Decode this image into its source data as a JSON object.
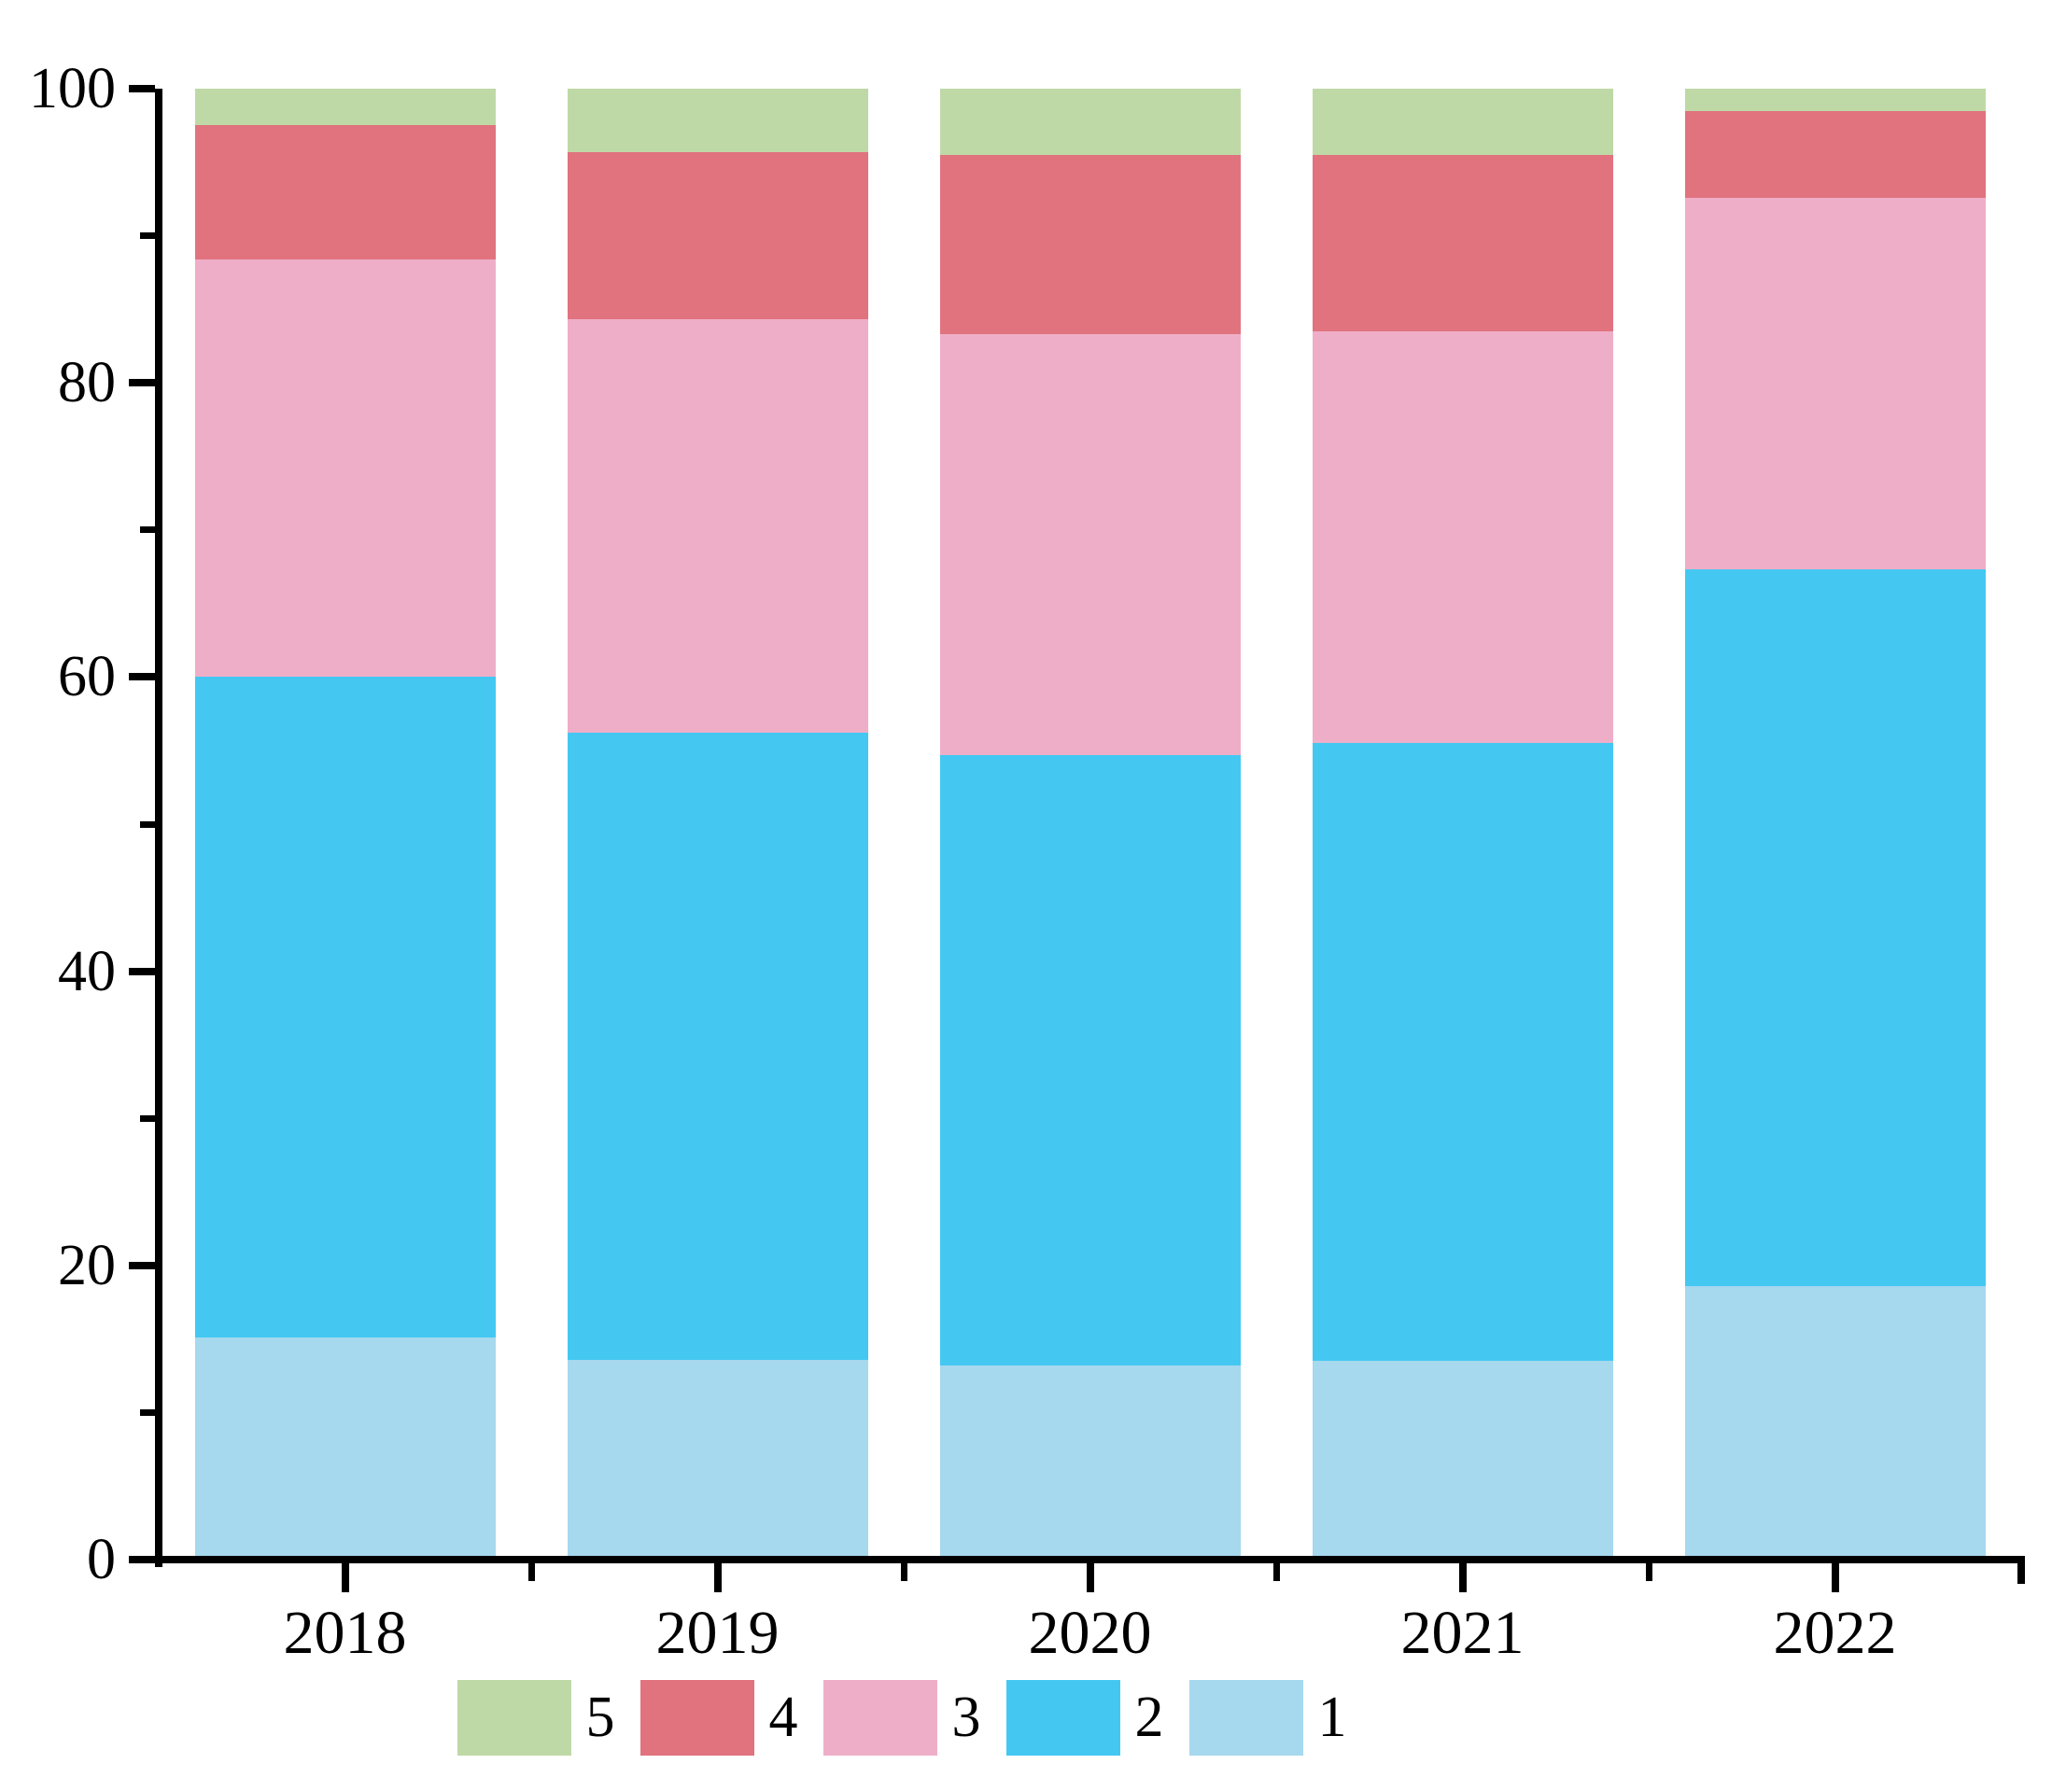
{
  "figure": {
    "background": "#ffffff",
    "axis_color": "#000000",
    "text_color": "#000000"
  },
  "chart_data": {
    "type": "bar",
    "stacked": true,
    "title": "",
    "xlabel": "",
    "ylabel": "",
    "categories": [
      "2018",
      "2019",
      "2020",
      "2021",
      "2022"
    ],
    "series": [
      {
        "name": "1",
        "color": "#a6d8ee",
        "values": [
          15.1,
          13.6,
          13.2,
          13.5,
          18.6
        ]
      },
      {
        "name": "2",
        "color": "#44c8f2",
        "values": [
          44.9,
          42.6,
          41.5,
          42.0,
          48.7
        ]
      },
      {
        "name": "3",
        "color": "#efaec8",
        "values": [
          28.4,
          28.1,
          28.6,
          28.0,
          25.3
        ]
      },
      {
        "name": "4",
        "color": "#e0737e",
        "values": [
          9.1,
          11.4,
          12.2,
          12.0,
          5.9
        ]
      },
      {
        "name": "5",
        "color": "#bfd9a6",
        "values": [
          2.5,
          4.3,
          4.5,
          4.5,
          1.5
        ]
      }
    ],
    "ylim": [
      0,
      100
    ],
    "yticks": [
      0,
      20,
      40,
      60,
      80,
      100
    ],
    "minor_yticks": [
      10,
      30,
      50,
      70,
      90
    ],
    "ytick_labels": [
      "0",
      "20",
      "40",
      "60",
      "80",
      "100"
    ],
    "grid": false,
    "legend_position": "bottom",
    "legend_order": [
      "5",
      "4",
      "3",
      "2",
      "1"
    ]
  }
}
